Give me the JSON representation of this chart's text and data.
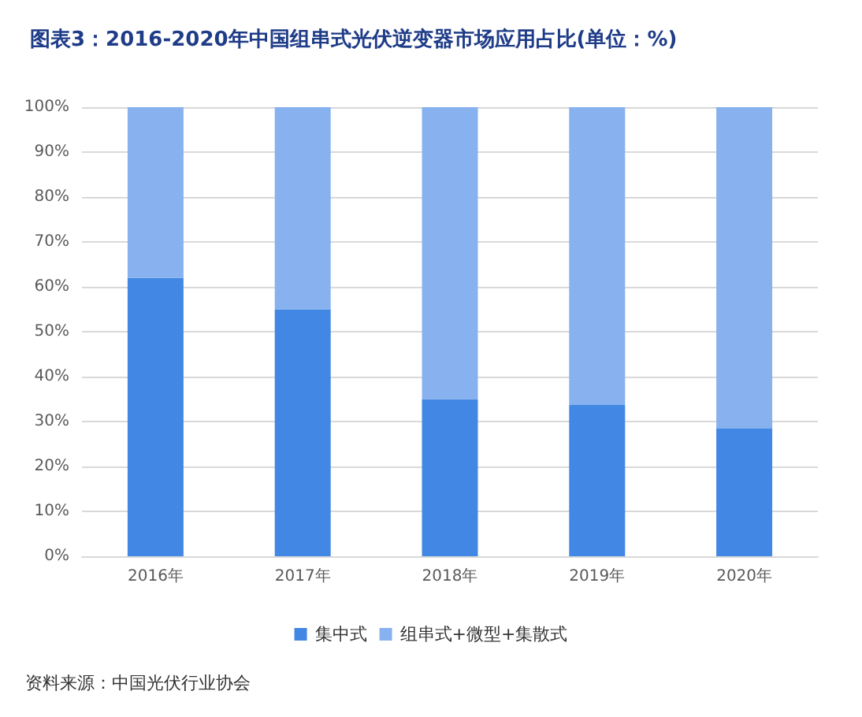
{
  "chart_data": {
    "type": "bar",
    "stacked": true,
    "title": "图表3：2016-2020年中国组串式光伏逆变器市场应用占比(单位：%)",
    "categories": [
      "2016年",
      "2017年",
      "2018年",
      "2019年",
      "2020年"
    ],
    "series": [
      {
        "name": "集中式",
        "color": "#4187e3",
        "values": [
          62,
          55,
          35,
          33.7,
          28.4
        ]
      },
      {
        "name": "组串式+微型+集散式",
        "color": "#87b1ef",
        "values": [
          38,
          45,
          65,
          66.3,
          71.6
        ]
      }
    ],
    "ylim": [
      0,
      100
    ],
    "yticks": [
      {
        "value": 0,
        "label": "0%"
      },
      {
        "value": 10,
        "label": "10%"
      },
      {
        "value": 20,
        "label": "20%"
      },
      {
        "value": 30,
        "label": "30%"
      },
      {
        "value": 40,
        "label": "40%"
      },
      {
        "value": 50,
        "label": "50%"
      },
      {
        "value": 60,
        "label": "60%"
      },
      {
        "value": 70,
        "label": "70%"
      },
      {
        "value": 80,
        "label": "80%"
      },
      {
        "value": 90,
        "label": "90%"
      },
      {
        "value": 100,
        "label": "100%"
      }
    ],
    "grid": "y",
    "legend": "bottom",
    "annotations": [
      "资料来源：中国光伏行业协会"
    ]
  }
}
